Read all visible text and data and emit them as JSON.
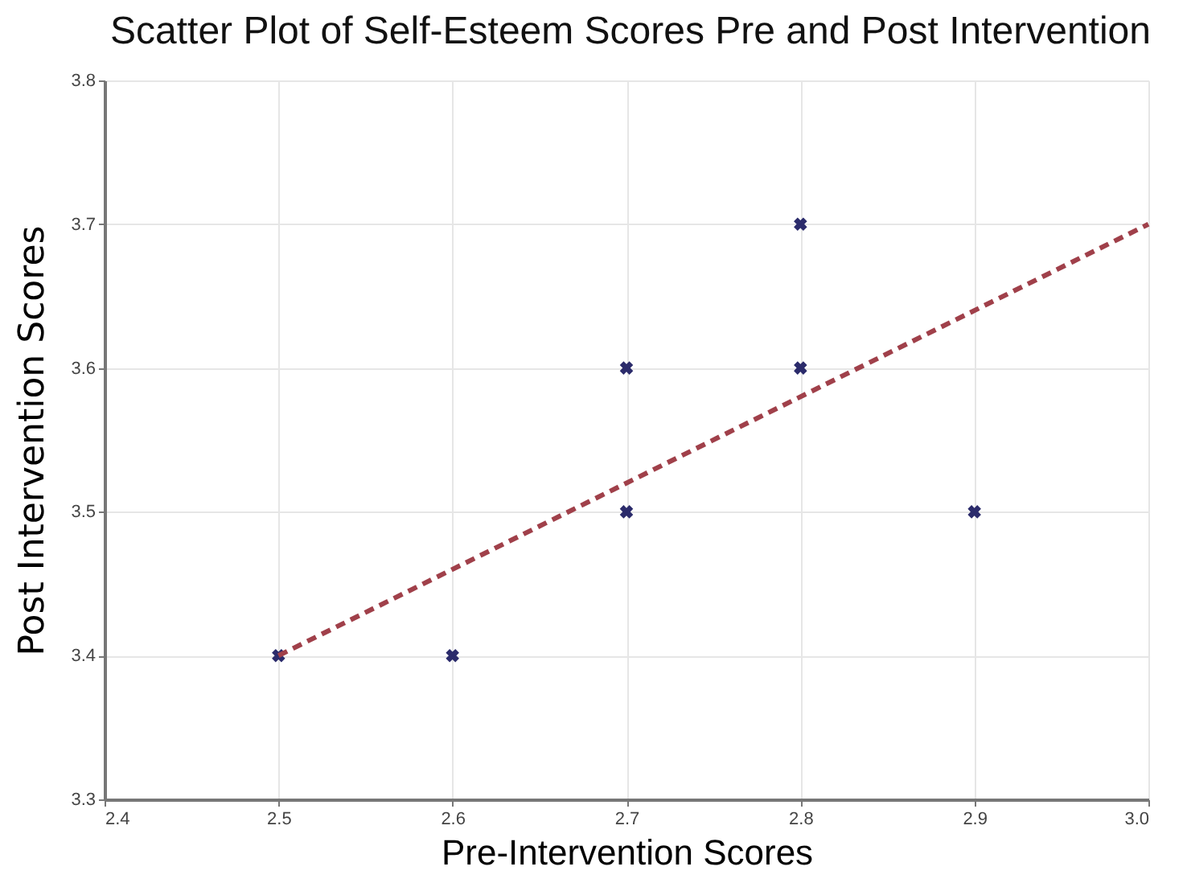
{
  "chart_data": {
    "type": "scatter",
    "title": "Scatter Plot of Self-Esteem Scores Pre and Post Intervention",
    "xlabel": "Pre-Intervention Scores",
    "ylabel": "Post Intervention Scores",
    "x": [
      2.5,
      2.6,
      2.7,
      2.7,
      2.8,
      2.8,
      2.9
    ],
    "series": [
      {
        "type": "scatter",
        "color": "#2b2b6b",
        "marker": "cross",
        "values": [
          3.4,
          3.4,
          3.6,
          3.5,
          3.7,
          3.6,
          3.5
        ]
      },
      {
        "type": "line",
        "color": "#a0404a",
        "marker": "none",
        "line_style": "dashed",
        "x": [
          2.5,
          3.0
        ],
        "values": [
          3.4,
          3.7
        ]
      }
    ],
    "xlim": [
      2.4,
      3.0
    ],
    "xticks": [
      2.4,
      2.5,
      2.6,
      2.7,
      2.8,
      2.9,
      {
        "value": 3.0,
        "label": "3.0"
      }
    ],
    "ylim": [
      3.3,
      3.8
    ],
    "yticks": [
      3.3,
      3.4,
      3.5,
      3.6,
      3.7,
      3.8
    ],
    "grid": true
  }
}
